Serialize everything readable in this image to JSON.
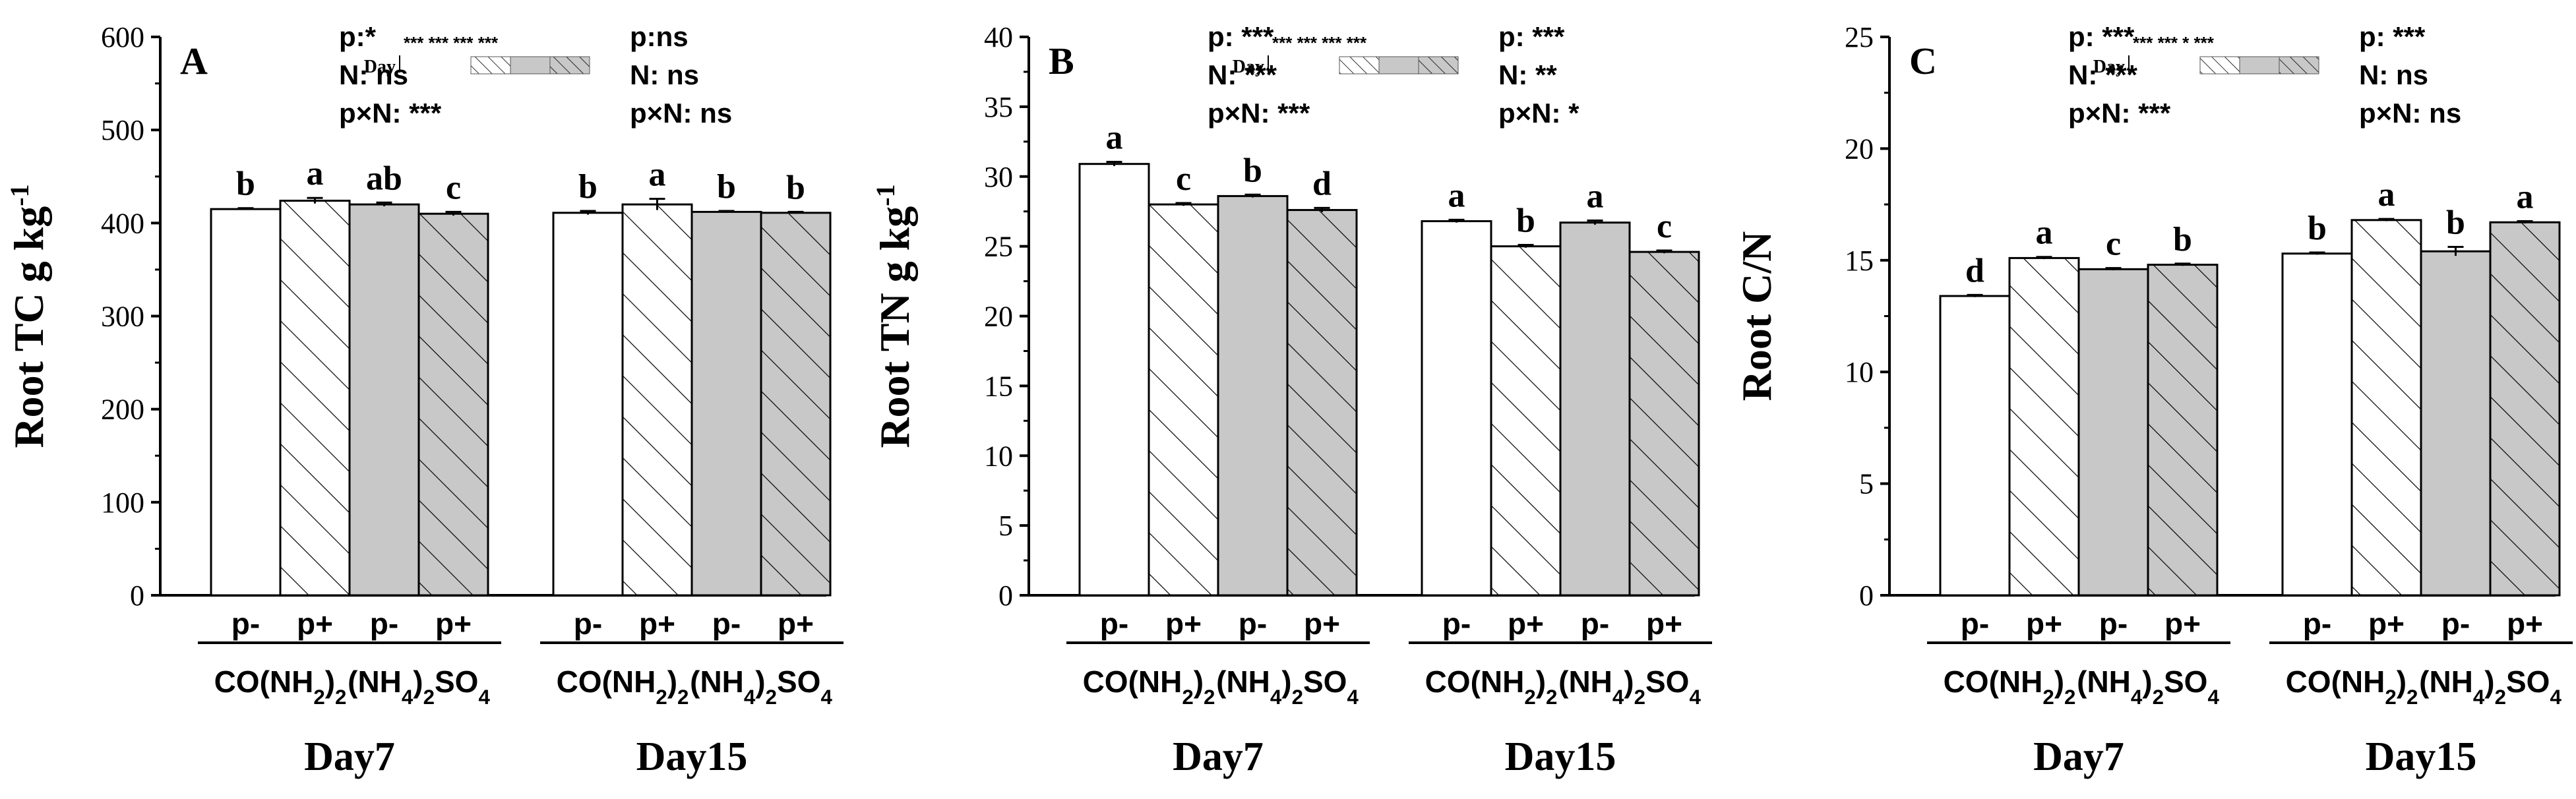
{
  "chart_data": [
    {
      "type": "bar",
      "panel_label": "A",
      "ylabel": "Root TC g kg",
      "ylabel_sup": "-1",
      "ylim": [
        0,
        600
      ],
      "yticks": [
        "0",
        "100",
        "200",
        "300",
        "400",
        "500",
        "600"
      ],
      "categories": [
        "p-",
        "p+",
        "p-",
        "p+",
        "p-",
        "p+",
        "p-",
        "p+"
      ],
      "groups": [
        "CO(NH2)2",
        "(NH4)2SO4",
        "CO(NH2)2",
        "(NH4)2SO4"
      ],
      "days": [
        "Day7",
        "Day15"
      ],
      "values": [
        415,
        424,
        420,
        410,
        411,
        420,
        412,
        411
      ],
      "errors": [
        1,
        3,
        2,
        2,
        2,
        6,
        1,
        1
      ],
      "letters": [
        "b",
        "a",
        "ab",
        "c",
        "b",
        "a",
        "b",
        "b"
      ],
      "stats": [
        [
          "p:*",
          "N: ns",
          "p×N: ***"
        ],
        [
          "p:ns",
          "N: ns",
          "p×N: ns"
        ]
      ],
      "legend": {
        "label": "Day",
        "stars": "*** *** *** ***"
      }
    },
    {
      "type": "bar",
      "panel_label": "B",
      "ylabel": "Root TN g kg",
      "ylabel_sup": "-1",
      "ylim": [
        0,
        40
      ],
      "yticks": [
        "0",
        "5",
        "10",
        "15",
        "20",
        "25",
        "30",
        "35",
        "40"
      ],
      "categories": [
        "p-",
        "p+",
        "p-",
        "p+",
        "p-",
        "p+",
        "p-",
        "p+"
      ],
      "groups": [
        "CO(NH2)2",
        "(NH4)2SO4",
        "CO(NH2)2",
        "(NH4)2SO4"
      ],
      "days": [
        "Day7",
        "Day15"
      ],
      "values": [
        30.9,
        28.0,
        28.6,
        27.6,
        26.8,
        25.0,
        26.7,
        24.6
      ],
      "errors": [
        0.15,
        0.1,
        0.1,
        0.15,
        0.1,
        0.1,
        0.15,
        0.1
      ],
      "letters": [
        "a",
        "c",
        "b",
        "d",
        "a",
        "b",
        "a",
        "c"
      ],
      "stats": [
        [
          "p: ***",
          "N: ***",
          "p×N: ***"
        ],
        [
          "p: ***",
          "N: **",
          "p×N: *"
        ]
      ],
      "legend": {
        "label": "Day",
        "stars": "*** *** *** ***"
      }
    },
    {
      "type": "bar",
      "panel_label": "C",
      "ylabel": "Root C/N",
      "ylabel_sup": "",
      "ylim": [
        0,
        25
      ],
      "yticks": [
        "0",
        "5",
        "10",
        "15",
        "20",
        "25"
      ],
      "categories": [
        "p-",
        "p+",
        "p-",
        "p+",
        "p-",
        "p+",
        "p-",
        "p+"
      ],
      "groups": [
        "CO(NH2)2",
        "(NH4)2SO4",
        "CO(NH2)2",
        "(NH4)2SO4"
      ],
      "days": [
        "Day7",
        "Day15"
      ],
      "values": [
        13.4,
        15.1,
        14.6,
        14.8,
        15.3,
        16.8,
        15.4,
        16.7
      ],
      "errors": [
        0.05,
        0.05,
        0.05,
        0.05,
        0.05,
        0.05,
        0.2,
        0.05
      ],
      "letters": [
        "d",
        "a",
        "c",
        "b",
        "b",
        "a",
        "b",
        "a"
      ],
      "stats": [
        [
          "p: ***",
          "N: ***",
          "p×N: ***"
        ],
        [
          "p: ***",
          "N: ns",
          "p×N: ns"
        ]
      ],
      "legend": {
        "label": "Day",
        "stars": "*** *** *    ***"
      }
    }
  ]
}
